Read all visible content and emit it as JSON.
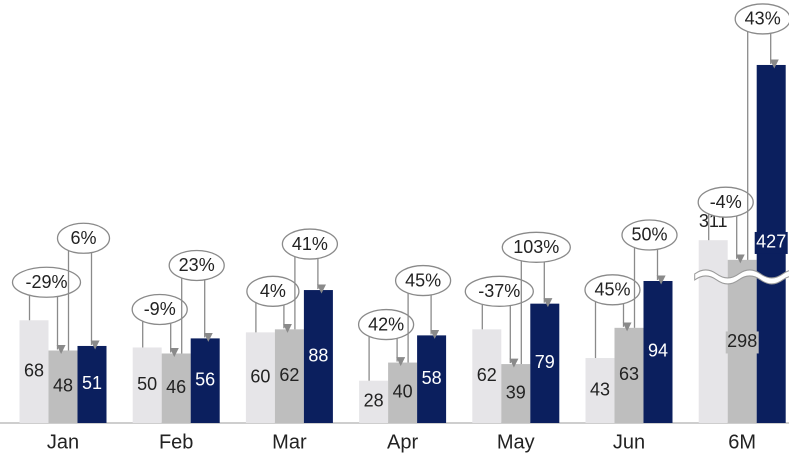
{
  "chart_data": {
    "type": "bar",
    "categories": [
      "Jan",
      "Feb",
      "Mar",
      "Apr",
      "May",
      "Jun",
      "6M"
    ],
    "series": [
      {
        "color": "#e6e5e8",
        "values": [
          68,
          50,
          60,
          28,
          62,
          43,
          311
        ]
      },
      {
        "color": "#bebebe",
        "values": [
          48,
          46,
          62,
          40,
          39,
          63,
          298
        ]
      },
      {
        "color": "#0b1f5e",
        "values": [
          51,
          56,
          88,
          58,
          79,
          94,
          427
        ]
      }
    ],
    "changes": [
      {
        "values": [
          -29,
          -9,
          4,
          42,
          -37,
          45,
          -4
        ],
        "value_labels": [
          "-29%",
          "-9%",
          "4%",
          "42%",
          "-37%",
          "45%",
          "-4%"
        ]
      },
      {
        "values": [
          6,
          23,
          41,
          45,
          103,
          50,
          43
        ],
        "value_labels": [
          "6%",
          "23%",
          "41%",
          "45%",
          "103%",
          "50%",
          "43%"
        ]
      }
    ],
    "ylim": [
      0,
      470
    ],
    "axis_break": [
      100,
      290
    ]
  }
}
